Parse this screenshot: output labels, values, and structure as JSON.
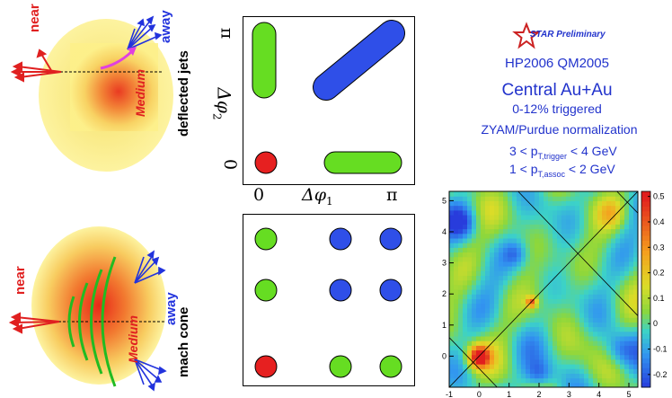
{
  "left_diagrams": {
    "top": {
      "near": "near",
      "away": "away",
      "medium": "Medium",
      "caption": "deflected jets"
    },
    "bottom": {
      "near": "near",
      "away": "away",
      "medium": "Medium",
      "caption": "mach cone"
    }
  },
  "middle_diagrams": {
    "top": {
      "x_label_phi1": "Δφ",
      "x_label_sub": "1",
      "x_tick_0": "0",
      "x_tick_pi": "π",
      "y_label_phi2": "Δφ",
      "y_label_sub": "2",
      "y_tick_0": "0",
      "y_tick_pi": "π"
    }
  },
  "info_panel": {
    "logo_text": "STAR Preliminary",
    "conferences": "HP2006  QM2005",
    "title": "Central Au+Au",
    "subtitle": "0-12% triggered",
    "normalization": "ZYAM/Purdue normalization",
    "cut1_pre": "3 < p",
    "cut1_sub": "T,trigger",
    "cut1_post": " < 4 GeV",
    "cut2_pre": "1 < p",
    "cut2_sub": "T,assoc",
    "cut2_post": " < 2 GeV"
  },
  "chart_data": {
    "type": "heatmap",
    "title": "",
    "xlabel": "",
    "ylabel": "",
    "xlim": [
      -1,
      5.3
    ],
    "ylim": [
      -1,
      5.3
    ],
    "x_ticks": [
      "-1",
      "0",
      "1",
      "2",
      "3",
      "4",
      "5"
    ],
    "y_ticks": [
      "0",
      "1",
      "2",
      "3",
      "4",
      "5"
    ],
    "colorbar_ticks": [
      "0.5",
      "0.4",
      "0.3",
      "0.2",
      "0.1",
      "0",
      "-0.1",
      "-0.2"
    ],
    "colorbar_range": [
      -0.25,
      0.52
    ],
    "colors": {
      "low": "#2a3fd9",
      "mid": "#3fd4c8",
      "green": "#8fd63a",
      "high": "#f0a020",
      "peak": "#e02020"
    }
  }
}
